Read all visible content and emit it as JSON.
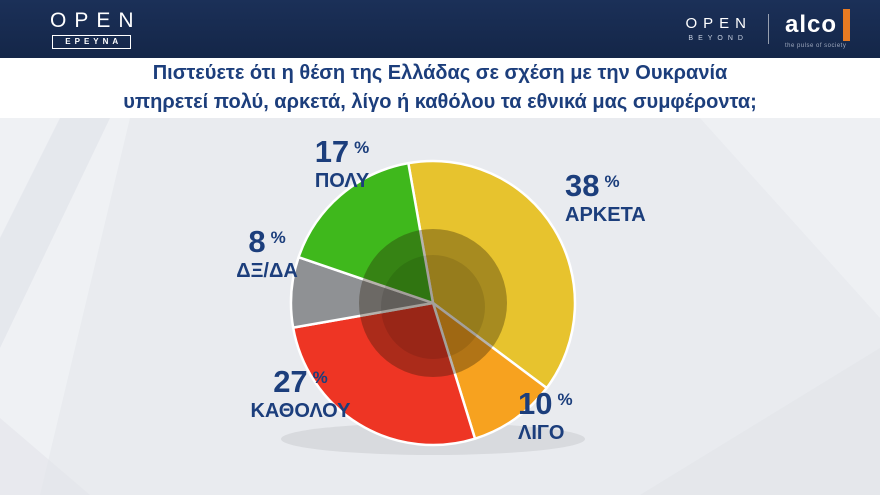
{
  "header": {
    "bg": "#16294d",
    "open_logo": "OPEN",
    "open_sub": "ΕΡΕΥΝΑ",
    "right_open": "OPEN",
    "right_open_sub": "BEYOND",
    "alco": "alco",
    "alco_tagline": "the pulse of society",
    "alco_bar_color": "#e87b22"
  },
  "question": {
    "line1": "Πιστεύετε ότι η θέση της Ελλάδας σε σχέση με την Ουκρανία",
    "line2": "υπηρετεί πολύ, αρκετά, λίγο ή καθόλου τα εθνικά μας συμφέροντα;",
    "color": "#1c3e7c"
  },
  "chart_data": {
    "type": "pie",
    "donut": true,
    "title": "",
    "start_angle_deg": -10,
    "direction": "clockwise",
    "percent_sign": "%",
    "label_color": "#1c3e7c",
    "slices": [
      {
        "label": "ΑΡΚΕΤΑ",
        "value": 38,
        "color": "#e7c32e"
      },
      {
        "label": "ΛΙΓΟ",
        "value": 10,
        "color": "#f7a21f"
      },
      {
        "label": "ΚΑΘΟΛΟΥ",
        "value": 27,
        "color": "#ee3524"
      },
      {
        "label": "ΔΞ/ΔΑ",
        "value": 8,
        "color": "#8f9194"
      },
      {
        "label": "ΠΟΛΥ",
        "value": 17,
        "color": "#3fb81c"
      }
    ]
  }
}
